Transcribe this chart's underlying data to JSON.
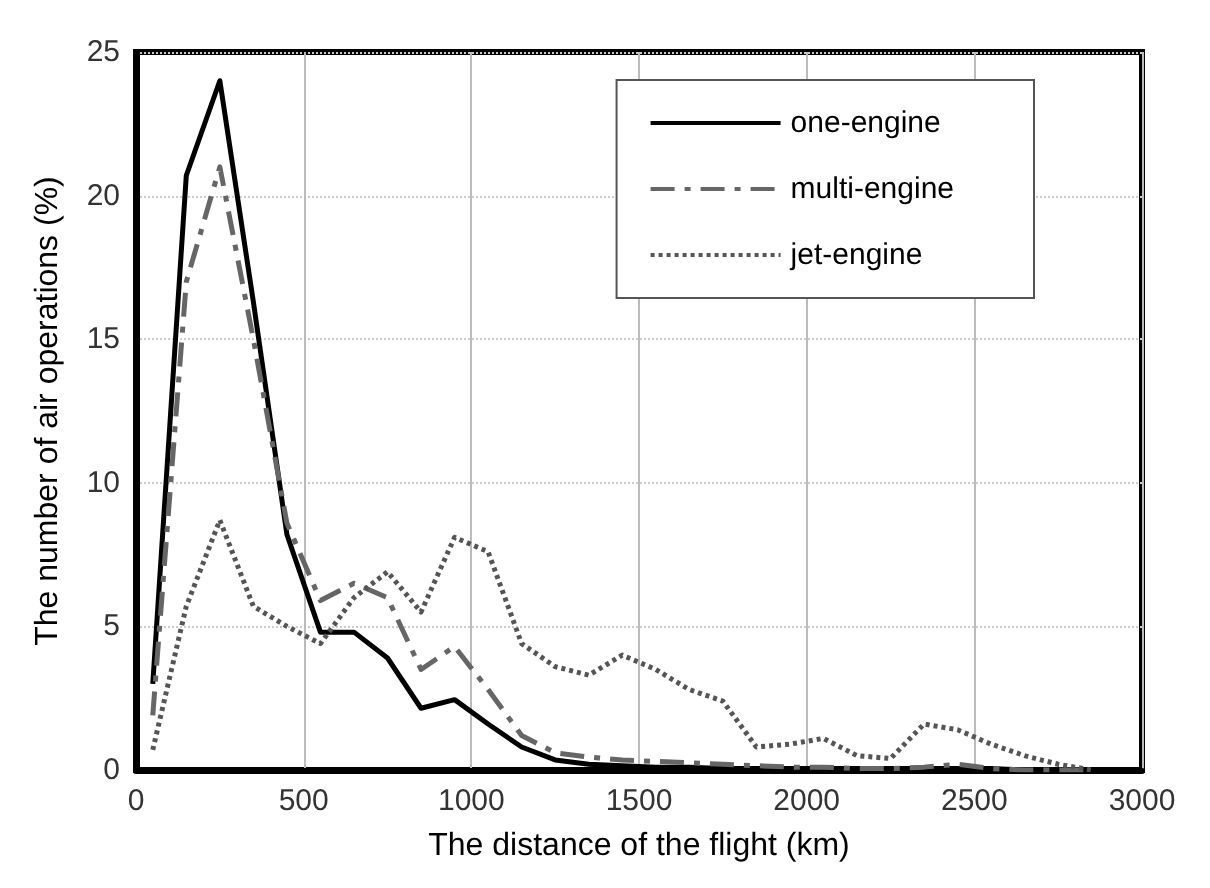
{
  "chart_data": {
    "type": "line",
    "xlabel": "The distance of the flight (km)",
    "ylabel": "The number of air operations (%)",
    "x": [
      50,
      150,
      250,
      350,
      450,
      550,
      650,
      750,
      850,
      950,
      1050,
      1150,
      1250,
      1350,
      1450,
      1550,
      1650,
      1750,
      1850,
      1950,
      2050,
      2150,
      2250,
      2350,
      2450,
      2550,
      2650,
      2750,
      2850
    ],
    "series": [
      {
        "name": "one-engine",
        "color": "#000000",
        "line_style": "solid",
        "values": [
          3.0,
          20.7,
          24.0,
          16.3,
          8.2,
          4.8,
          4.8,
          3.9,
          2.15,
          2.45,
          1.6,
          0.8,
          0.35,
          0.2,
          0.15,
          0.1,
          0.1,
          0.05,
          0.05,
          0.05,
          0.05,
          0.05,
          0.05,
          0.05,
          0.05,
          0.05,
          0,
          0,
          0
        ]
      },
      {
        "name": "multi-engine",
        "color": "#666666",
        "line_style": "dashed",
        "values": [
          1.9,
          17,
          21.0,
          15,
          8.6,
          5.9,
          6.5,
          6.0,
          3.5,
          4.3,
          2.8,
          1.2,
          0.6,
          0.45,
          0.35,
          0.3,
          0.25,
          0.2,
          0.15,
          0.1,
          0.1,
          0.05,
          0.05,
          0.1,
          0.2,
          0.05,
          0,
          0,
          0
        ]
      },
      {
        "name": "jet-engine",
        "color": "#555555",
        "line_style": "dotted",
        "values": [
          0.7,
          5.7,
          8.7,
          5.7,
          5.0,
          4.4,
          6.0,
          6.9,
          5.5,
          8.1,
          7.6,
          4.4,
          3.6,
          3.3,
          4.0,
          3.5,
          2.8,
          2.4,
          0.8,
          0.9,
          1.1,
          0.5,
          0.4,
          1.6,
          1.4,
          0.9,
          0.5,
          0.2,
          0
        ]
      }
    ],
    "xlim": [
      0,
      3000
    ],
    "xticks": [
      0,
      500,
      1000,
      1500,
      2000,
      2500,
      3000
    ],
    "ylim": [
      0,
      25
    ],
    "yticks": [
      0,
      5,
      10,
      15,
      20,
      25
    ],
    "grid": true,
    "legend": "top right",
    "marker": "none"
  }
}
